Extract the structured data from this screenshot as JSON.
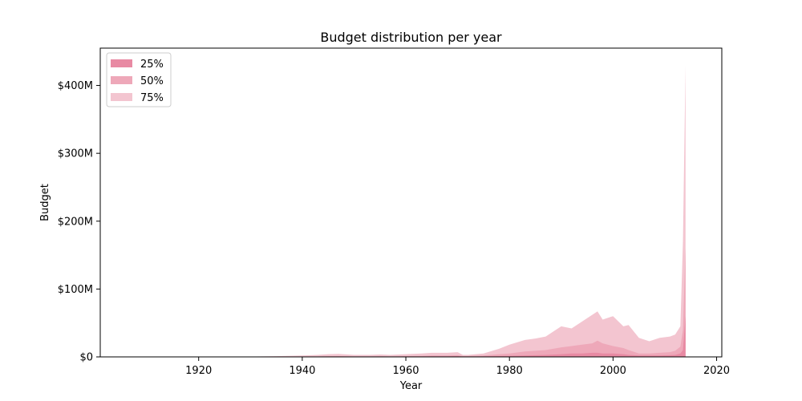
{
  "chart_data": {
    "type": "area",
    "title": "Budget distribution per year",
    "xlabel": "Year",
    "ylabel": "Budget",
    "xlim": [
      1901,
      2021
    ],
    "ylim": [
      0,
      455
    ],
    "x_ticks": [
      1920,
      1940,
      1960,
      1980,
      2000,
      2020
    ],
    "x_tick_labels": [
      "1920",
      "1940",
      "1960",
      "1980",
      "2000",
      "2020"
    ],
    "y_ticks": [
      0,
      100,
      200,
      300,
      400
    ],
    "y_tick_labels": [
      "$0",
      "$100M",
      "$200M",
      "$300M",
      "$400M"
    ],
    "legend_position": "top-left",
    "grid": false,
    "x": [
      1915,
      1920,
      1925,
      1930,
      1935,
      1940,
      1943,
      1945,
      1947,
      1950,
      1953,
      1955,
      1957,
      1960,
      1963,
      1965,
      1968,
      1970,
      1971,
      1972,
      1975,
      1978,
      1980,
      1983,
      1985,
      1987,
      1990,
      1992,
      1994,
      1996,
      1997,
      1998,
      2000,
      2002,
      2003,
      2005,
      2007,
      2009,
      2011,
      2012,
      2013,
      2013.5,
      2014
    ],
    "series": [
      {
        "name": "25%",
        "color": "#e88aa3",
        "values": [
          0,
          0,
          0,
          0,
          0,
          0.2,
          0.3,
          0.4,
          0.5,
          0.3,
          0.3,
          0.4,
          0.3,
          0.5,
          0.6,
          0.8,
          0.8,
          1,
          0.5,
          0.5,
          0.8,
          1.2,
          1.5,
          2,
          2.5,
          3,
          4,
          5,
          5,
          6,
          6,
          5,
          5,
          4,
          3,
          2,
          2,
          2,
          2.5,
          3,
          5,
          10,
          60
        ]
      },
      {
        "name": "50%",
        "color": "#eea8b9",
        "values": [
          0,
          0,
          0,
          0,
          0.1,
          0.4,
          0.6,
          1,
          1.2,
          0.8,
          0.8,
          1,
          0.8,
          1.2,
          1.5,
          2,
          2,
          2.5,
          1.2,
          1.2,
          2,
          4,
          5,
          8,
          9,
          10,
          14,
          16,
          18,
          20,
          24,
          20,
          16,
          13,
          10,
          5,
          5,
          6,
          7,
          9,
          15,
          40,
          160
        ]
      },
      {
        "name": "75%",
        "color": "#f3c5d0",
        "values": [
          0,
          0.2,
          0.3,
          0.5,
          1,
          2,
          3,
          4,
          4.5,
          3,
          3,
          3.5,
          3,
          4,
          5,
          6,
          6,
          7,
          3,
          3,
          5,
          12,
          18,
          25,
          27,
          30,
          45,
          42,
          52,
          62,
          67,
          55,
          60,
          45,
          47,
          28,
          23,
          28,
          30,
          33,
          45,
          170,
          430
        ]
      }
    ]
  }
}
